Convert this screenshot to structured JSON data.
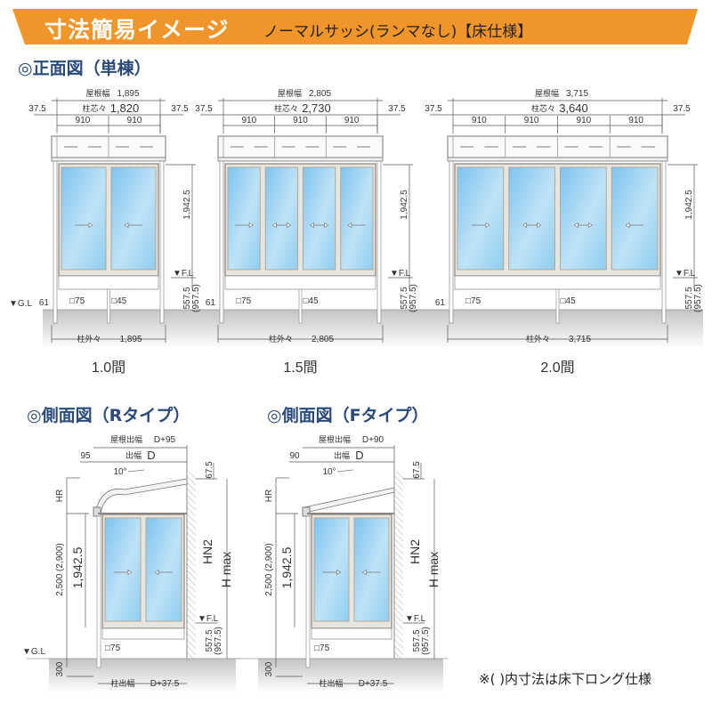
{
  "header": {
    "title": "寸法簡易イメージ",
    "subtitle": "ノーマルサッシ(ランマなし)【床仕様】",
    "color": "#f0952a"
  },
  "front_section": {
    "title": "◎正面図（単棟）"
  },
  "front_views": [
    {
      "caption": "1.0間",
      "roof_width_label": "屋根幅",
      "roof_width": "1,895",
      "center_label": "柱芯々",
      "center": "1,820",
      "overhang_left": "37.5",
      "overhang_right": "37.5",
      "spans": [
        "910",
        "910"
      ],
      "height": "1,942.5",
      "fl": "▼F.L",
      "floor": "557.5",
      "floor_long": "(957.5)",
      "gl": "▼G.L",
      "left_dim": "61",
      "post_main": "□75",
      "post_sub": "□45",
      "outer_label": "柱外々",
      "outer": "1,895",
      "arrows": [
        "right",
        "left"
      ]
    },
    {
      "caption": "1.5間",
      "roof_width_label": "屋根幅",
      "roof_width": "2,805",
      "center_label": "柱芯々",
      "center": "2,730",
      "overhang_left": "37.5",
      "overhang_right": "37.5",
      "spans": [
        "910",
        "910",
        "910"
      ],
      "height": "1,942.5",
      "fl": "▼F.L",
      "floor": "557.5",
      "floor_long": "(957.5)",
      "left_dim": "61",
      "post_main": "□75",
      "post_sub": "□45",
      "outer_label": "柱外々",
      "outer": "2,805",
      "arrows": [
        "right",
        "both",
        "both",
        "left"
      ]
    },
    {
      "caption": "2.0間",
      "roof_width_label": "屋根幅",
      "roof_width": "3,715",
      "center_label": "柱芯々",
      "center": "3,640",
      "overhang_left": "37.5",
      "overhang_right": "37.5",
      "spans": [
        "910",
        "910",
        "910",
        "910"
      ],
      "height": "1,942.5",
      "fl": "▼F.L",
      "floor": "557.5",
      "floor_long": "(957.5)",
      "left_dim": "61",
      "post_main": "□75",
      "post_sub": "□45",
      "outer_label": "柱外々",
      "outer": "3,715",
      "arrows": [
        "right",
        "both",
        "both",
        "left"
      ]
    }
  ],
  "side_views": [
    {
      "title": "◎側面図（Rタイプ）",
      "roof_label": "屋根出幅",
      "roof": "D+95",
      "eave": "95",
      "depth_label": "出幅",
      "depth": "D",
      "angle": "10°",
      "hr": "HR",
      "total": "2,500 (2,900)",
      "height": "1,942.5",
      "hn2": "HN2",
      "hmax": "H max",
      "top": "67.5",
      "fl": "▼F.L",
      "floor": "557.5",
      "floor_long": "(957.5)",
      "post": "□75",
      "gl": "▼G.L",
      "embed": "300",
      "post_depth_label": "柱出幅",
      "post_depth": "D+37.5"
    },
    {
      "title": "◎側面図（Fタイプ）",
      "roof_label": "屋根出幅",
      "roof": "D+90",
      "eave": "90",
      "depth_label": "出幅",
      "depth": "D",
      "angle": "10°",
      "hr": "HR",
      "total": "2,500 (2,900)",
      "height": "1,942.5",
      "hn2": "HN2",
      "hmax": "H max",
      "top": "67.5",
      "fl": "▼F.L",
      "floor": "557.5",
      "floor_long": "(957.5)",
      "post": "□75",
      "embed": "300",
      "post_depth_label": "柱出幅",
      "post_depth": "D+37.5"
    }
  ],
  "note": "※( )内寸法は床下ロング仕様",
  "colors": {
    "glass_top": "#7fc3ee",
    "glass_bottom": "#d9effb",
    "frame": "#8a7f72",
    "ground": "#c8c8c8",
    "title_blue": "#2a4a7a"
  }
}
